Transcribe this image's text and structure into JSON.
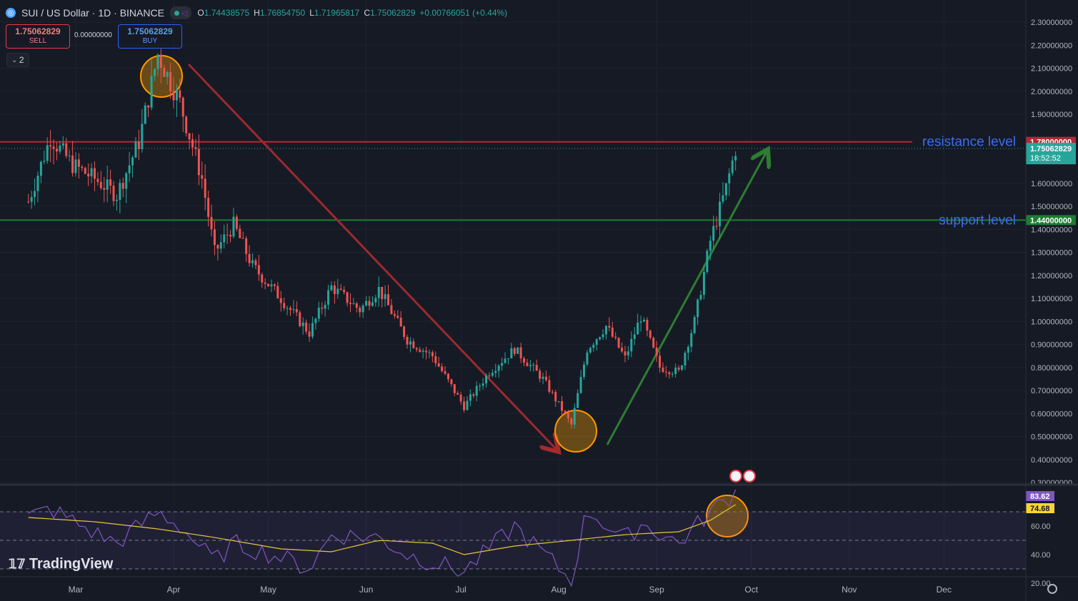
{
  "header": {
    "symbol": "SUI / US Dollar · 1D · BINANCE",
    "ohlc": [
      {
        "k": "O",
        "v": "1.74438575"
      },
      {
        "k": "H",
        "v": "1.76854750"
      },
      {
        "k": "L",
        "v": "1.71965817"
      },
      {
        "k": "C",
        "v": "1.75062829"
      }
    ],
    "change": "+0.00766051 (+0.44%)"
  },
  "trade": {
    "sell_price": "1.75062829",
    "sell_label": "SELL",
    "spread": "0.00000000",
    "buy_price": "1.75062829",
    "buy_label": "BUY"
  },
  "collapse_count": "2",
  "branding": "TradingView",
  "colors": {
    "up": "#26a69a",
    "down": "#ef5350",
    "resistance": "#b22833",
    "support": "#1e7d32",
    "rsi": "#7e57c2",
    "rsi_ma": "#e6c639"
  },
  "chart_data": {
    "type": "candlestick",
    "price_axis": {
      "ticks": [
        "2.30000000",
        "2.20000000",
        "2.10000000",
        "2.00000000",
        "1.90000000",
        "1.60000000",
        "1.50000000",
        "1.40000000",
        "1.30000000",
        "1.20000000",
        "1.10000000",
        "1.00000000",
        "0.90000000",
        "0.80000000",
        "0.70000000",
        "0.60000000",
        "0.50000000",
        "0.40000000",
        "0.30000000"
      ],
      "range": [
        0.3,
        2.3
      ]
    },
    "x_axis": {
      "ticks": [
        "Mar",
        "Apr",
        "May",
        "Jun",
        "Jul",
        "Aug",
        "Sep",
        "Oct",
        "Nov",
        "Dec"
      ]
    },
    "levels": [
      {
        "name": "resistance level",
        "value": 1.78,
        "badge": "1.78000000"
      },
      {
        "name": "support level",
        "value": 1.44,
        "badge": "1.44000000"
      }
    ],
    "last_price": {
      "value": 1.75062829,
      "badge": "1.75062829",
      "timer": "18:52:52"
    },
    "price_series": [
      [
        "2024-02-15",
        1.52
      ],
      [
        "2024-02-22",
        1.8
      ],
      [
        "2024-02-29",
        1.68
      ],
      [
        "2024-03-07",
        1.62
      ],
      [
        "2024-03-14",
        1.55
      ],
      [
        "2024-03-21",
        1.78
      ],
      [
        "2024-03-27",
        2.16
      ],
      [
        "2024-04-03",
        1.95
      ],
      [
        "2024-04-10",
        1.62
      ],
      [
        "2024-04-14",
        1.3
      ],
      [
        "2024-04-20",
        1.42
      ],
      [
        "2024-04-26",
        1.24
      ],
      [
        "2024-05-05",
        1.1
      ],
      [
        "2024-05-14",
        0.95
      ],
      [
        "2024-05-21",
        1.15
      ],
      [
        "2024-05-30",
        1.05
      ],
      [
        "2024-06-05",
        1.14
      ],
      [
        "2024-06-14",
        0.92
      ],
      [
        "2024-06-22",
        0.85
      ],
      [
        "2024-07-02",
        0.63
      ],
      [
        "2024-07-10",
        0.78
      ],
      [
        "2024-07-18",
        0.88
      ],
      [
        "2024-07-27",
        0.75
      ],
      [
        "2024-08-05",
        0.55
      ],
      [
        "2024-08-10",
        0.88
      ],
      [
        "2024-08-16",
        0.98
      ],
      [
        "2024-08-22",
        0.84
      ],
      [
        "2024-08-27",
        1.02
      ],
      [
        "2024-09-02",
        0.8
      ],
      [
        "2024-09-08",
        0.78
      ],
      [
        "2024-09-13",
        1.0
      ],
      [
        "2024-09-18",
        1.35
      ],
      [
        "2024-09-23",
        1.58
      ],
      [
        "2024-09-26",
        1.75
      ]
    ],
    "rsi": {
      "ticks": [
        "60.00",
        "40.00",
        "20.00"
      ],
      "range": [
        20,
        80
      ],
      "value_badge": "83.62",
      "ma_badge": "74.68",
      "rsi_series": [
        [
          "2024-02-15",
          66
        ],
        [
          "2024-02-22",
          72
        ],
        [
          "2024-03-07",
          55
        ],
        [
          "2024-03-14",
          48
        ],
        [
          "2024-03-27",
          70
        ],
        [
          "2024-04-03",
          60
        ],
        [
          "2024-04-14",
          35
        ],
        [
          "2024-04-20",
          48
        ],
        [
          "2024-05-05",
          38
        ],
        [
          "2024-05-14",
          30
        ],
        [
          "2024-05-21",
          54
        ],
        [
          "2024-06-05",
          52
        ],
        [
          "2024-06-14",
          40
        ],
        [
          "2024-07-02",
          28
        ],
        [
          "2024-07-18",
          60
        ],
        [
          "2024-08-05",
          22
        ],
        [
          "2024-08-10",
          72
        ],
        [
          "2024-08-22",
          50
        ],
        [
          "2024-08-27",
          62
        ],
        [
          "2024-09-08",
          48
        ],
        [
          "2024-09-18",
          70
        ],
        [
          "2024-09-26",
          84
        ]
      ],
      "ma_series": [
        [
          "2024-02-15",
          66
        ],
        [
          "2024-03-07",
          63
        ],
        [
          "2024-03-27",
          58
        ],
        [
          "2024-04-14",
          52
        ],
        [
          "2024-05-05",
          44
        ],
        [
          "2024-05-21",
          42
        ],
        [
          "2024-06-05",
          50
        ],
        [
          "2024-06-22",
          48
        ],
        [
          "2024-07-02",
          40
        ],
        [
          "2024-07-18",
          46
        ],
        [
          "2024-08-05",
          50
        ],
        [
          "2024-08-22",
          54
        ],
        [
          "2024-09-08",
          56
        ],
        [
          "2024-09-18",
          64
        ],
        [
          "2024-09-26",
          75
        ]
      ]
    }
  }
}
